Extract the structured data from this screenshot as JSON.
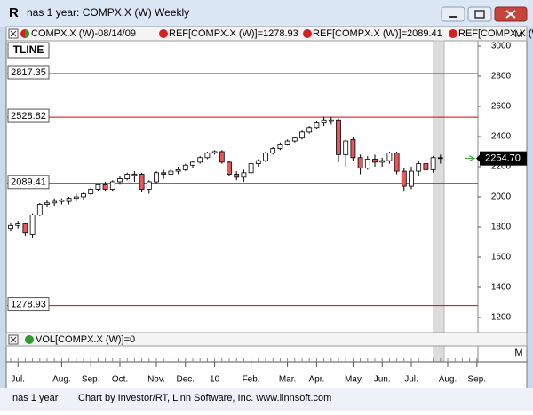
{
  "window": {
    "title": "nas 1 year: COMPX.X (W) Weekly",
    "icon": "R"
  },
  "header": {
    "symbol": "COMPX.X (W)-08/14/09",
    "refs": [
      "REF[COMPX.X (W)]=1278.93",
      "REF[COMPX.X (W)]=2089.41",
      "REF[COMPX.X (W"
    ]
  },
  "tline": "TLINE",
  "panel_marker": "M",
  "chart_data": {
    "type": "candlestick",
    "categories": [
      null,
      "Jul.",
      null,
      null,
      null,
      null,
      null,
      "Aug.",
      null,
      null,
      null,
      "Sep.",
      null,
      null,
      null,
      "Oct.",
      null,
      null,
      null,
      null,
      "Nov.",
      null,
      null,
      null,
      "Dec.",
      null,
      null,
      null,
      "10",
      null,
      null,
      null,
      null,
      "Feb.",
      null,
      null,
      null,
      null,
      "Mar.",
      null,
      null,
      null,
      "Apr.",
      null,
      null,
      null,
      null,
      "May",
      null,
      null,
      null,
      "Jun.",
      null,
      null,
      null,
      "Jul.",
      null,
      null,
      null,
      null,
      "Aug.",
      null,
      null,
      null,
      "Sep."
    ],
    "open": [
      1790,
      1810,
      1820,
      1750,
      1880,
      1950,
      1960,
      1970,
      1970,
      1990,
      2000,
      2020,
      2050,
      2080,
      2050,
      2100,
      2120,
      2150,
      2150,
      2050,
      2100,
      2160,
      2150,
      2170,
      2180,
      2210,
      2230,
      2260,
      2290,
      2300,
      2230,
      2150,
      2130,
      2160,
      2220,
      2240,
      2290,
      2320,
      2350,
      2370,
      2390,
      2430,
      2460,
      2490,
      2500,
      2510,
      2280,
      2380,
      2260,
      2190,
      2250,
      2230,
      2240,
      2290,
      2170,
      2070,
      2170,
      2220,
      2180,
      2260,
      null,
      null,
      null,
      null,
      null
    ],
    "high": [
      1830,
      1840,
      1830,
      1890,
      1960,
      1980,
      1990,
      1990,
      2000,
      2020,
      2030,
      2060,
      2090,
      2100,
      2110,
      2140,
      2160,
      2170,
      2160,
      2110,
      2170,
      2180,
      2190,
      2200,
      2220,
      2240,
      2270,
      2300,
      2310,
      2310,
      2240,
      2170,
      2180,
      2230,
      2250,
      2300,
      2330,
      2360,
      2380,
      2400,
      2440,
      2470,
      2500,
      2530,
      2530,
      2520,
      2380,
      2400,
      2280,
      2270,
      2280,
      2260,
      2300,
      2300,
      2190,
      2200,
      2240,
      2250,
      2270,
      2280,
      null,
      null,
      null,
      null,
      null
    ],
    "low": [
      1770,
      1790,
      1740,
      1730,
      1870,
      1930,
      1940,
      1950,
      1950,
      1970,
      1980,
      2010,
      2040,
      2040,
      2040,
      2080,
      2110,
      2100,
      2030,
      2020,
      2090,
      2120,
      2130,
      2150,
      2170,
      2190,
      2220,
      2250,
      2280,
      2220,
      2140,
      2110,
      2100,
      2150,
      2200,
      2230,
      2280,
      2310,
      2340,
      2360,
      2380,
      2420,
      2450,
      2470,
      2480,
      2230,
      2200,
      2240,
      2150,
      2180,
      2200,
      2200,
      2220,
      2150,
      2040,
      2050,
      2140,
      2190,
      2160,
      2220,
      null,
      null,
      null,
      null,
      null
    ],
    "close": [
      1810,
      1820,
      1760,
      1880,
      1950,
      1960,
      1970,
      1980,
      1990,
      2000,
      2020,
      2050,
      2080,
      2050,
      2100,
      2120,
      2150,
      2140,
      2050,
      2100,
      2160,
      2150,
      2170,
      2180,
      2210,
      2230,
      2260,
      2290,
      2300,
      2230,
      2150,
      2130,
      2160,
      2220,
      2240,
      2290,
      2320,
      2350,
      2370,
      2390,
      2430,
      2460,
      2490,
      2510,
      2510,
      2280,
      2370,
      2260,
      2190,
      2250,
      2230,
      2240,
      2290,
      2170,
      2070,
      2170,
      2220,
      2180,
      2260,
      2255,
      null,
      null,
      null,
      null,
      null
    ],
    "up_color": "#ffffff",
    "down_color": "#e8585a",
    "ylim": [
      1100,
      3035
    ],
    "yticks": [
      1200,
      1400,
      1600,
      1800,
      2000,
      2200,
      2400,
      2600,
      2800,
      3000
    ],
    "ref_lines": [
      2817.35,
      2528.82,
      2089.41,
      1278.93
    ],
    "ref_color": "#e00000",
    "last_value": {
      "value": 2254.7,
      "label": "2254.70"
    }
  },
  "volume_panel": {
    "label": "VOL[COMPX.X (W)]=0"
  },
  "status_bar": {
    "left": "nas 1 year",
    "credit": "Chart by Investor/RT, Linn Software, Inc. www.linnsoft.com"
  }
}
